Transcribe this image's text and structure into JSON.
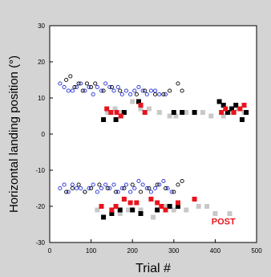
{
  "chart_data": {
    "type": "scatter",
    "xlabel": "Trial #",
    "ylabel": "Horizontal landing position (°)",
    "xlim": [
      0,
      500
    ],
    "ylim": [
      -30,
      30
    ],
    "xticks": [
      0,
      100,
      200,
      300,
      400,
      500
    ],
    "yticks": [
      -30,
      -20,
      -10,
      0,
      10,
      20,
      30
    ],
    "grid": false,
    "annotations": [
      {
        "text": "POST",
        "x": 420,
        "y": -25,
        "color": "#e8141d"
      }
    ],
    "colors": {
      "blue": "#1f2bd1",
      "black": "#000000",
      "red": "#e8141d",
      "gray": "#c8c8c8"
    },
    "series": [
      {
        "marker": "open-circle",
        "color": "#1f2bd1",
        "points": [
          [
            25,
            14
          ],
          [
            35,
            13
          ],
          [
            45,
            12
          ],
          [
            55,
            12
          ],
          [
            65,
            13
          ],
          [
            75,
            14
          ],
          [
            85,
            12
          ],
          [
            95,
            13
          ],
          [
            105,
            11
          ],
          [
            115,
            13
          ],
          [
            125,
            12
          ],
          [
            135,
            14
          ],
          [
            145,
            13
          ],
          [
            155,
            12
          ],
          [
            165,
            13
          ],
          [
            175,
            11
          ],
          [
            185,
            12
          ],
          [
            195,
            11
          ],
          [
            205,
            12
          ],
          [
            215,
            13
          ],
          [
            225,
            12
          ],
          [
            235,
            11
          ],
          [
            245,
            12
          ],
          [
            255,
            12
          ],
          [
            265,
            11
          ],
          [
            280,
            11
          ],
          [
            25,
            -15
          ],
          [
            35,
            -14
          ],
          [
            45,
            -16
          ],
          [
            55,
            -14
          ],
          [
            65,
            -15
          ],
          [
            75,
            -15
          ],
          [
            85,
            -16
          ],
          [
            95,
            -15
          ],
          [
            105,
            -14
          ],
          [
            115,
            -16
          ],
          [
            125,
            -15
          ],
          [
            135,
            -14
          ],
          [
            145,
            -15
          ],
          [
            155,
            -14
          ],
          [
            165,
            -16
          ],
          [
            175,
            -15
          ],
          [
            185,
            -14
          ],
          [
            195,
            -16
          ],
          [
            205,
            -15
          ],
          [
            215,
            -13
          ],
          [
            225,
            -14
          ],
          [
            235,
            -15
          ],
          [
            245,
            -16
          ],
          [
            255,
            -15
          ],
          [
            265,
            -14
          ],
          [
            275,
            -13
          ],
          [
            285,
            -15
          ],
          [
            295,
            -16
          ]
        ]
      },
      {
        "marker": "open-circle",
        "color": "#000000",
        "points": [
          [
            40,
            15
          ],
          [
            50,
            16
          ],
          [
            60,
            13
          ],
          [
            70,
            14
          ],
          [
            80,
            12
          ],
          [
            90,
            14
          ],
          [
            100,
            13
          ],
          [
            110,
            14
          ],
          [
            130,
            12
          ],
          [
            150,
            13
          ],
          [
            170,
            12
          ],
          [
            210,
            11
          ],
          [
            230,
            12
          ],
          [
            255,
            11
          ],
          [
            275,
            11
          ],
          [
            290,
            12
          ],
          [
            310,
            14
          ],
          [
            320,
            12
          ],
          [
            40,
            -16
          ],
          [
            55,
            -15
          ],
          [
            70,
            -14
          ],
          [
            85,
            -16
          ],
          [
            100,
            -15
          ],
          [
            120,
            -14
          ],
          [
            140,
            -15
          ],
          [
            160,
            -16
          ],
          [
            180,
            -15
          ],
          [
            200,
            -14
          ],
          [
            220,
            -16
          ],
          [
            240,
            -15
          ],
          [
            260,
            -14
          ],
          [
            280,
            -15
          ],
          [
            300,
            -16
          ],
          [
            310,
            -14
          ],
          [
            320,
            -13
          ]
        ]
      },
      {
        "marker": "filled-square",
        "color": "#c8c8c8",
        "points": [
          [
            140,
            6
          ],
          [
            158,
            7
          ],
          [
            175,
            6
          ],
          [
            200,
            9
          ],
          [
            220,
            7
          ],
          [
            240,
            7
          ],
          [
            265,
            6
          ],
          [
            290,
            5
          ],
          [
            305,
            5
          ],
          [
            330,
            6
          ],
          [
            370,
            6
          ],
          [
            390,
            5
          ],
          [
            420,
            5
          ],
          [
            440,
            6
          ],
          [
            455,
            7
          ],
          [
            470,
            6
          ],
          [
            115,
            -21
          ],
          [
            170,
            -22
          ],
          [
            190,
            -21
          ],
          [
            220,
            -21
          ],
          [
            250,
            -23
          ],
          [
            280,
            -20
          ],
          [
            300,
            -21
          ],
          [
            330,
            -21
          ],
          [
            360,
            -20
          ],
          [
            380,
            -20
          ],
          [
            400,
            -22
          ],
          [
            435,
            -22
          ]
        ]
      },
      {
        "marker": "filled-square",
        "color": "#000000",
        "points": [
          [
            130,
            4
          ],
          [
            160,
            4
          ],
          [
            180,
            6
          ],
          [
            215,
            9
          ],
          [
            300,
            6
          ],
          [
            320,
            6
          ],
          [
            350,
            6
          ],
          [
            410,
            9
          ],
          [
            420,
            8
          ],
          [
            430,
            6
          ],
          [
            440,
            7
          ],
          [
            450,
            8
          ],
          [
            465,
            4
          ],
          [
            475,
            6
          ],
          [
            130,
            -23
          ],
          [
            150,
            -22
          ],
          [
            170,
            -21
          ],
          [
            200,
            -21
          ],
          [
            220,
            -22
          ],
          [
            260,
            -21
          ],
          [
            290,
            -20
          ],
          [
            310,
            -20
          ]
        ]
      },
      {
        "marker": "filled-square",
        "color": "#e8141d",
        "points": [
          [
            138,
            7
          ],
          [
            148,
            6
          ],
          [
            162,
            6
          ],
          [
            172,
            5
          ],
          [
            220,
            8
          ],
          [
            230,
            6
          ],
          [
            415,
            6
          ],
          [
            425,
            7
          ],
          [
            445,
            6
          ],
          [
            460,
            7
          ],
          [
            470,
            8
          ],
          [
            125,
            -20
          ],
          [
            150,
            -21
          ],
          [
            160,
            -20
          ],
          [
            180,
            -18
          ],
          [
            195,
            -19
          ],
          [
            210,
            -19
          ],
          [
            245,
            -18
          ],
          [
            260,
            -19
          ],
          [
            270,
            -20
          ],
          [
            280,
            -21
          ],
          [
            310,
            -19
          ],
          [
            350,
            -18
          ]
        ]
      }
    ]
  }
}
